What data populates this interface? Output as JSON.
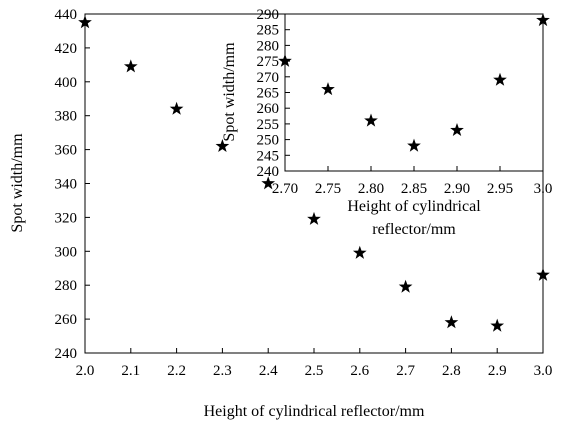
{
  "chart_data": [
    {
      "type": "scatter",
      "marker": "star",
      "xlabel": "Height of cylindrical reflector/mm",
      "ylabel": "Spot width/mm",
      "xlim": [
        2.0,
        3.0
      ],
      "ylim": [
        240,
        440
      ],
      "xticks": [
        "2.0",
        "2.1",
        "2.2",
        "2.3",
        "2.4",
        "2.5",
        "2.6",
        "2.7",
        "2.8",
        "2.9",
        "3.0"
      ],
      "yticks": [
        "240",
        "260",
        "280",
        "300",
        "320",
        "340",
        "360",
        "380",
        "400",
        "420",
        "440"
      ],
      "x": [
        2.0,
        2.1,
        2.2,
        2.3,
        2.4,
        2.5,
        2.6,
        2.7,
        2.8,
        2.9,
        3.0
      ],
      "y": [
        435,
        409,
        384,
        362,
        340,
        319,
        299,
        279,
        258,
        256,
        286
      ],
      "grid": false
    },
    {
      "type": "scatter",
      "marker": "star",
      "inset": true,
      "xlabel": "Height of cylindrical reflector/mm",
      "ylabel": "Spot width/mm",
      "xlim": [
        2.7,
        3.0
      ],
      "ylim": [
        240,
        290
      ],
      "xticks": [
        "2.70",
        "2.75",
        "2.80",
        "2.85",
        "2.90",
        "2.95",
        "3.0"
      ],
      "yticks": [
        "240",
        "245",
        "250",
        "255",
        "260",
        "265",
        "270",
        "275",
        "280",
        "285",
        "290"
      ],
      "x": [
        2.7,
        2.75,
        2.8,
        2.85,
        2.9,
        2.95,
        3.0
      ],
      "y": [
        275,
        266,
        256,
        248,
        253,
        269,
        288
      ],
      "grid": false
    }
  ]
}
